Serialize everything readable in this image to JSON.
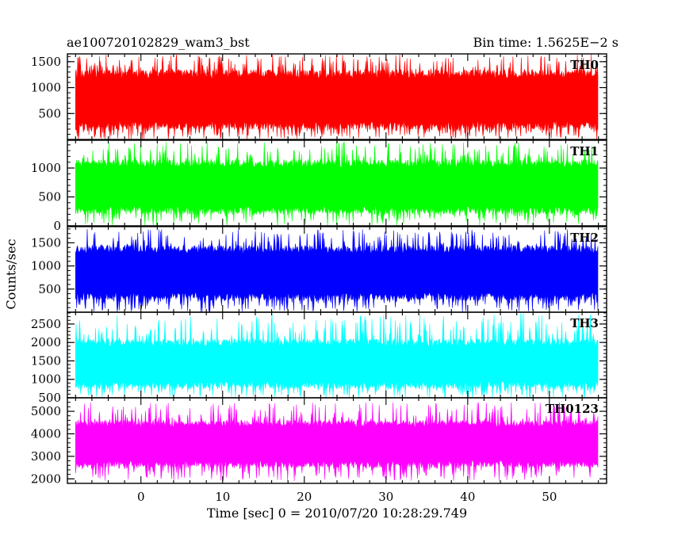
{
  "header": {
    "title": "ae100720102829_wam3_bst",
    "bin_time": "Bin time: 1.5625E−2 s"
  },
  "axes": {
    "ylabel": "Counts/sec",
    "xlabel": "Time [sec] 0 = 2010/07/20 10:28:29.749"
  },
  "chart_data": {
    "type": "line",
    "title": "ae100720102829_wam3_bst",
    "subtitle": "Bin time: 1.5625E−2 s",
    "xlabel": "Time [sec] 0 = 2010/07/20 10:28:29.749",
    "ylabel": "Counts/sec",
    "xlim": [
      -9,
      57
    ],
    "x_ticks": [
      0,
      10,
      20,
      30,
      40,
      50
    ],
    "data_x_range": [
      -8,
      56
    ],
    "bin_time_s": 0.015625,
    "grid": false,
    "legend": "none",
    "panels": [
      {
        "name": "TH0",
        "color": "#ff0000",
        "ylim": [
          0,
          1650
        ],
        "y_ticks": [
          500,
          1000,
          1500
        ],
        "typical_range": [
          180,
          1350
        ],
        "peak_max": 1650,
        "trough_min": 0
      },
      {
        "name": "TH1",
        "color": "#00ff00",
        "ylim": [
          0,
          1480
        ],
        "y_ticks": [
          0,
          500,
          1000
        ],
        "typical_range": [
          200,
          1150
        ],
        "peak_max": 1450,
        "trough_min": 0
      },
      {
        "name": "TH2",
        "color": "#0000ff",
        "ylim": [
          0,
          1850
        ],
        "y_ticks": [
          500,
          1000,
          1500
        ],
        "typical_range": [
          250,
          1450
        ],
        "peak_max": 1800,
        "trough_min": 0
      },
      {
        "name": "TH3",
        "color": "#00ffff",
        "ylim": [
          500,
          2820
        ],
        "y_ticks": [
          500,
          1000,
          1500,
          2000,
          2500
        ],
        "typical_range": [
          750,
          2100
        ],
        "peak_max": 2800,
        "trough_min": 500
      },
      {
        "name": "TH0123",
        "color": "#ff00ff",
        "ylim": [
          1800,
          5600
        ],
        "y_ticks": [
          2000,
          3000,
          4000,
          5000
        ],
        "typical_range": [
          2500,
          4600
        ],
        "peak_max": 5400,
        "trough_min": 1900
      }
    ]
  }
}
